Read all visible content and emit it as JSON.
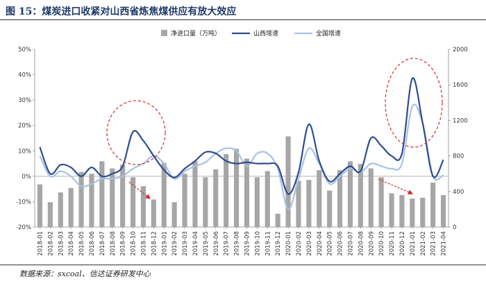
{
  "figure": {
    "title": "图 15：煤炭进口收紧对山西省炼焦煤供应有放大效应",
    "source": "数据来源：sxcoal、信达证券研发中心"
  },
  "chart_data": {
    "type": "bar",
    "title": "",
    "x": [
      "2018-01",
      "2018-02",
      "2018-03",
      "2018-04",
      "2018-05",
      "2018-06",
      "2018-07",
      "2018-08",
      "2018-09",
      "2018-10",
      "2018-11",
      "2018-12",
      "2019-01",
      "2019-02",
      "2019-03",
      "2019-04",
      "2019-05",
      "2019-06",
      "2019-07",
      "2019-08",
      "2019-09",
      "2019-10",
      "2019-11",
      "2019-12",
      "2020-01",
      "2020-02",
      "2020-03",
      "2020-04",
      "2020-05",
      "2020-06",
      "2020-07",
      "2020-08",
      "2020-09",
      "2020-10",
      "2020-11",
      "2020-12",
      "2021-01",
      "2021-02",
      "2021-03",
      "2021-04"
    ],
    "y_left": {
      "ticks": [
        "50%",
        "40%",
        "30%",
        "20%",
        "10%",
        "0%",
        "-10%",
        "-20%"
      ],
      "ylim": [
        -20,
        50
      ]
    },
    "y_right": {
      "ticks": [
        "2000",
        "1600",
        "1200",
        "800",
        "400",
        "0"
      ],
      "ylim": [
        0,
        2000
      ]
    },
    "legend": [
      "净进口量（万吨）",
      "山西增速",
      "全国增速"
    ],
    "legend_position": "top",
    "series": [
      {
        "name": "净进口量（万吨）",
        "type": "bar",
        "axis": "right",
        "color": "#a6a6a6",
        "values": [
          480,
          280,
          390,
          440,
          620,
          600,
          740,
          660,
          700,
          560,
          460,
          310,
          720,
          280,
          600,
          740,
          560,
          650,
          820,
          880,
          770,
          560,
          630,
          150,
          1020,
          520,
          530,
          640,
          410,
          640,
          740,
          710,
          660,
          560,
          380,
          360,
          320,
          330,
          500,
          360
        ]
      },
      {
        "name": "山西增速",
        "type": "line",
        "axis": "left",
        "color": "#2e4d8f",
        "values": [
          11.5,
          1,
          4.5,
          3.5,
          0,
          3.5,
          0,
          1,
          4,
          17.5,
          14,
          8,
          2.5,
          -0.5,
          3,
          6,
          9.5,
          9,
          6,
          5,
          5.5,
          5,
          5,
          4,
          -7,
          1.5,
          20.5,
          6,
          -2,
          1,
          4,
          2,
          15,
          12,
          8,
          9,
          38.5,
          21,
          0,
          6.5
        ]
      },
      {
        "name": "全国增速",
        "type": "line",
        "axis": "left",
        "color": "#a9c1e6",
        "values": [
          8,
          0,
          2,
          0,
          -4,
          -3,
          -1,
          -1,
          0,
          3,
          5,
          8,
          5,
          -1,
          2,
          4,
          5.5,
          9,
          11,
          10,
          4,
          9,
          9,
          3,
          -13,
          -1,
          11,
          5,
          -3,
          0,
          3,
          1.5,
          5,
          4,
          3,
          5,
          27.5,
          21,
          0,
          0.5
        ]
      }
    ]
  }
}
